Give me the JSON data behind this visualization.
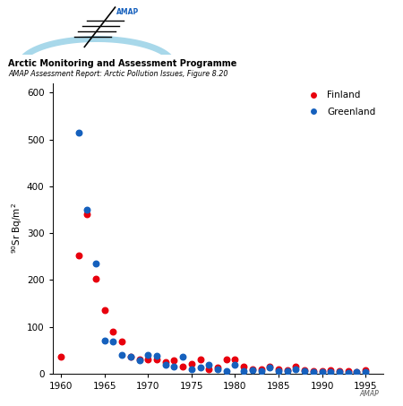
{
  "finland_x": [
    1960,
    1962,
    1963,
    1964,
    1965,
    1966,
    1967,
    1968,
    1969,
    1970,
    1971,
    1972,
    1973,
    1974,
    1975,
    1976,
    1977,
    1978,
    1979,
    1980,
    1981,
    1982,
    1983,
    1984,
    1985,
    1986,
    1987,
    1988,
    1989,
    1990,
    1991,
    1992,
    1993,
    1994,
    1995
  ],
  "finland_y": [
    35,
    253,
    340,
    202,
    135,
    90,
    68,
    35,
    30,
    30,
    30,
    25,
    28,
    15,
    20,
    30,
    10,
    12,
    30,
    30,
    15,
    10,
    10,
    14,
    10,
    8,
    15,
    8,
    5,
    5,
    8,
    5,
    5,
    4,
    7
  ],
  "greenland_x": [
    1962,
    1963,
    1964,
    1965,
    1966,
    1967,
    1968,
    1969,
    1970,
    1971,
    1972,
    1973,
    1974,
    1975,
    1976,
    1977,
    1978,
    1979,
    1980,
    1981,
    1982,
    1983,
    1984,
    1985,
    1986,
    1987,
    1988,
    1989,
    1990,
    1991,
    1992,
    1993,
    1994,
    1995
  ],
  "greenland_y": [
    515,
    350,
    235,
    70,
    68,
    40,
    35,
    28,
    40,
    38,
    18,
    15,
    35,
    10,
    12,
    18,
    10,
    5,
    18,
    5,
    8,
    5,
    12,
    5,
    5,
    10,
    5,
    3,
    3,
    3,
    3,
    2,
    3,
    4
  ],
  "finland_color": "#e8000d",
  "greenland_color": "#1560bd",
  "title1": "Arctic Monitoring and Assessment Programme",
  "title2": "AMAP Assessment Report: Arctic Pollution Issues, Figure 8.20",
  "ylabel": "$^{90}$Sr Bq/m$^2$",
  "xlim": [
    1959,
    1997
  ],
  "ylim": [
    0,
    620
  ],
  "xticks": [
    1960,
    1965,
    1970,
    1975,
    1980,
    1985,
    1990,
    1995
  ],
  "yticks": [
    0,
    100,
    200,
    300,
    400,
    500,
    600
  ],
  "background_color": "#ffffff",
  "watermark": "AMAP",
  "arc_color": "#a8d8ea",
  "logo_needle_color": "#000000",
  "logo_text_color": "#1560bd"
}
